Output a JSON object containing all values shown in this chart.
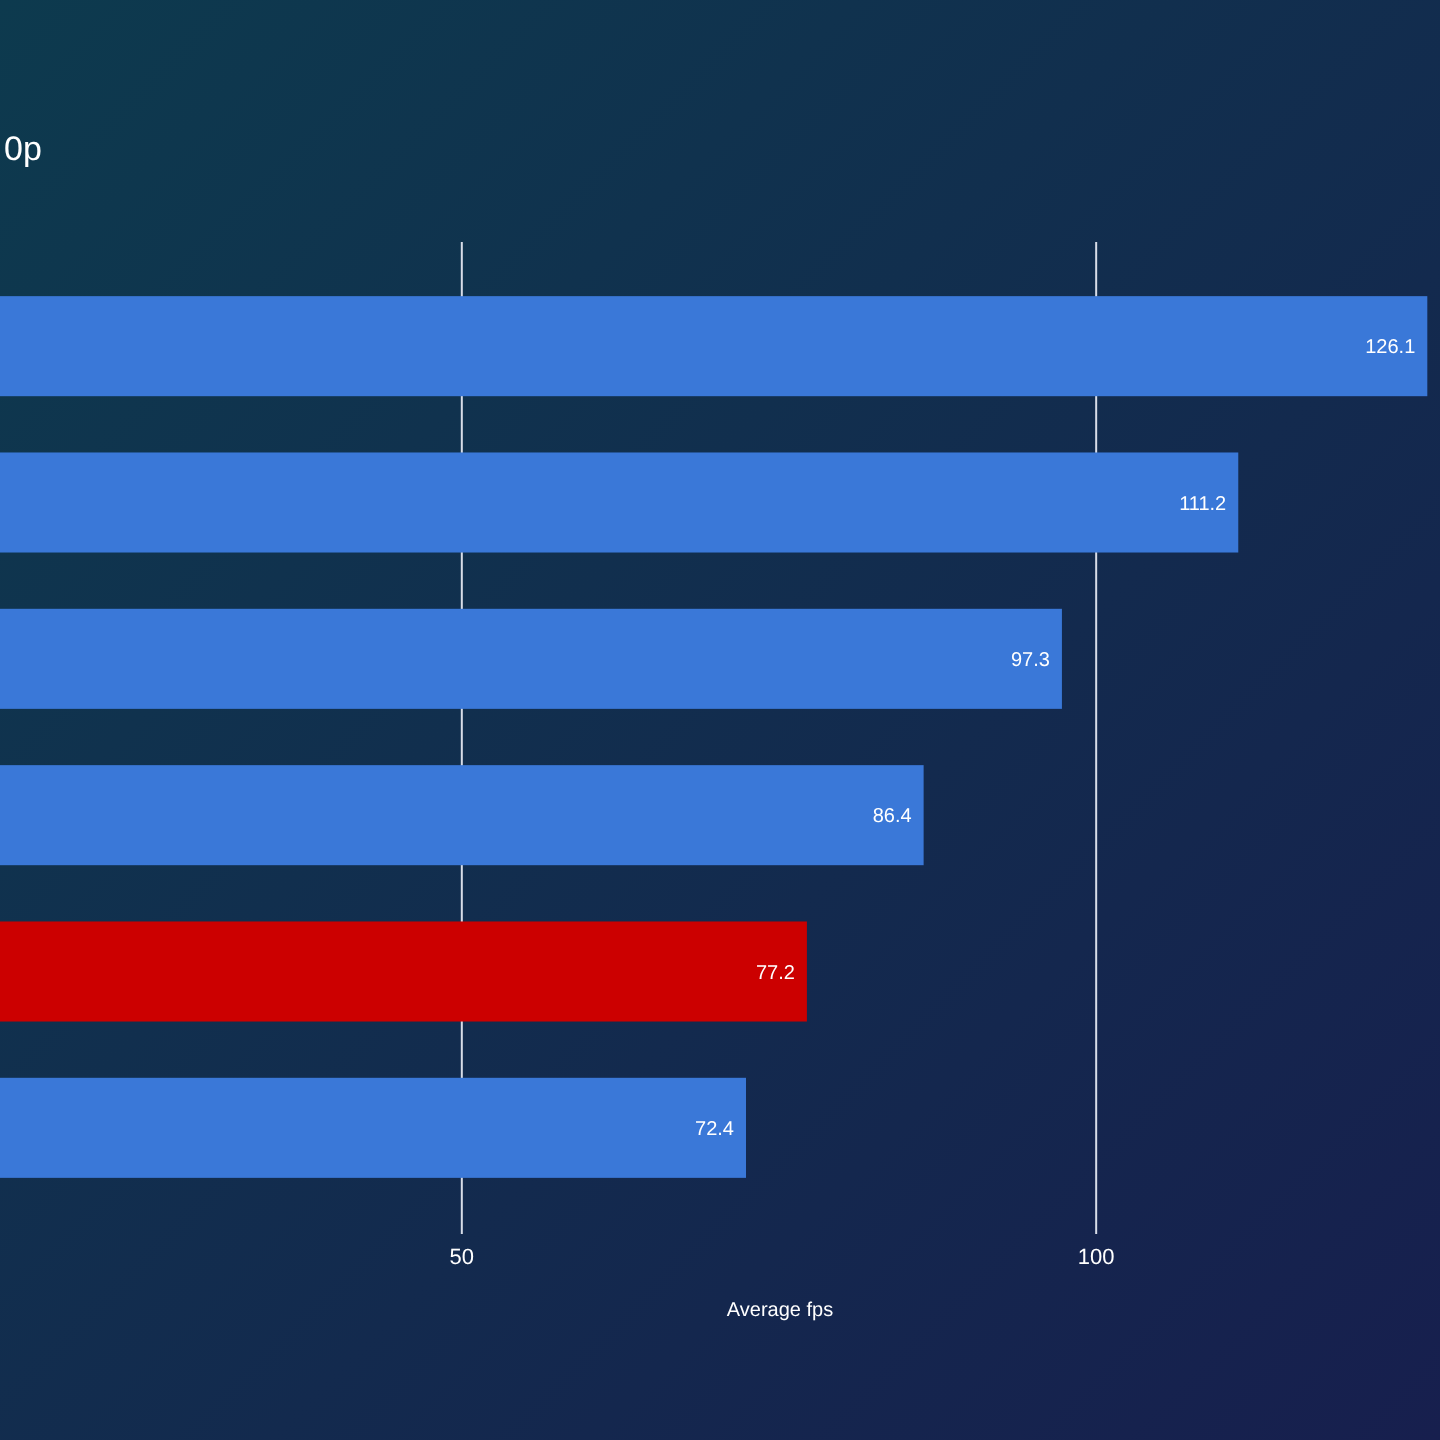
{
  "chart_data": {
    "type": "bar",
    "orientation": "horizontal",
    "title": "0p",
    "xlabel": "Average fps",
    "categories": [
      null,
      null,
      null,
      null,
      null,
      null
    ],
    "values": [
      126.1,
      111.2,
      97.3,
      86.4,
      77.2,
      72.4
    ],
    "colors": [
      "#3a78d8",
      "#3a78d8",
      "#3a78d8",
      "#3a78d8",
      "#cc0000",
      "#3a78d8"
    ],
    "xlim": [
      13.6,
      127.1
    ],
    "xticks": [
      50,
      100
    ],
    "grid": "x",
    "data_labels": true
  }
}
